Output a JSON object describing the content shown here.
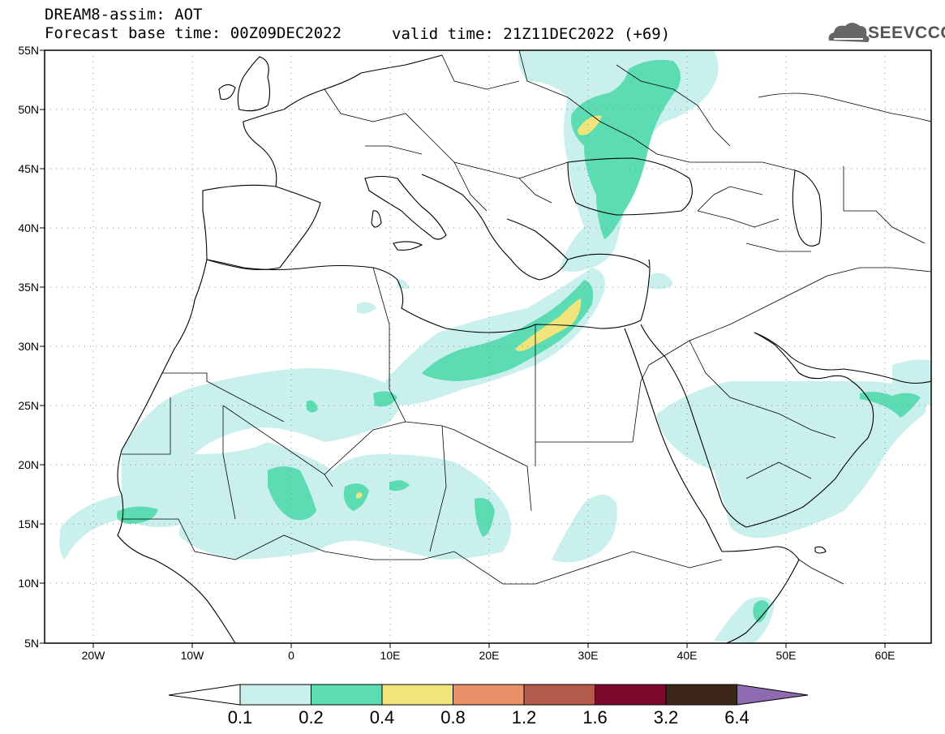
{
  "header": {
    "title": "DREAM8-assim: AOT",
    "base_time": "Forecast base time: 00Z09DEC2022",
    "valid_time": "valid time: 21Z11DEC2022 (+69)"
  },
  "logo": {
    "text": "SEEVCCC",
    "icon": "cloud-icon"
  },
  "map": {
    "lat_labels": [
      "55N",
      "50N",
      "45N",
      "40N",
      "35N",
      "30N",
      "25N",
      "20N",
      "15N",
      "10N",
      "5N"
    ],
    "lon_labels": [
      "20W",
      "10W",
      "0",
      "10E",
      "20E",
      "30E",
      "40E",
      "50E",
      "60E"
    ],
    "lat_range": [
      5,
      55
    ],
    "lon_range": [
      -25,
      65
    ]
  },
  "legend": {
    "levels": [
      "0.1",
      "0.2",
      "0.4",
      "0.8",
      "1.2",
      "1.6",
      "3.2",
      "6.4"
    ],
    "colors": [
      "#c9f0ec",
      "#5ddcb3",
      "#f0e47a",
      "#e8916a",
      "#b35a4a",
      "#7d0a2c",
      "#3b2618",
      "#8e6ab0"
    ],
    "low_color": "#ffffff"
  }
}
